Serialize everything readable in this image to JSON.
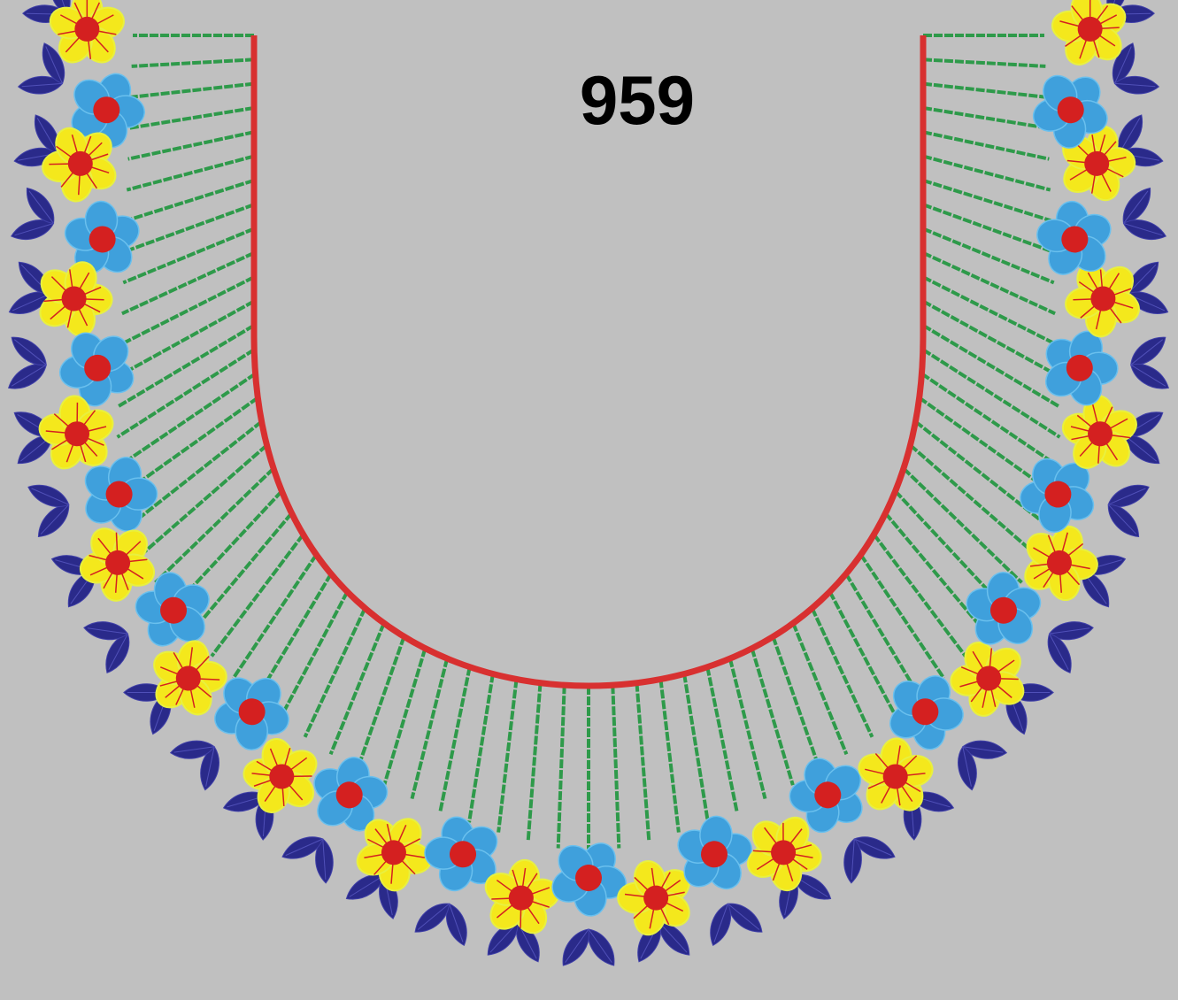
{
  "label": "959"
}
